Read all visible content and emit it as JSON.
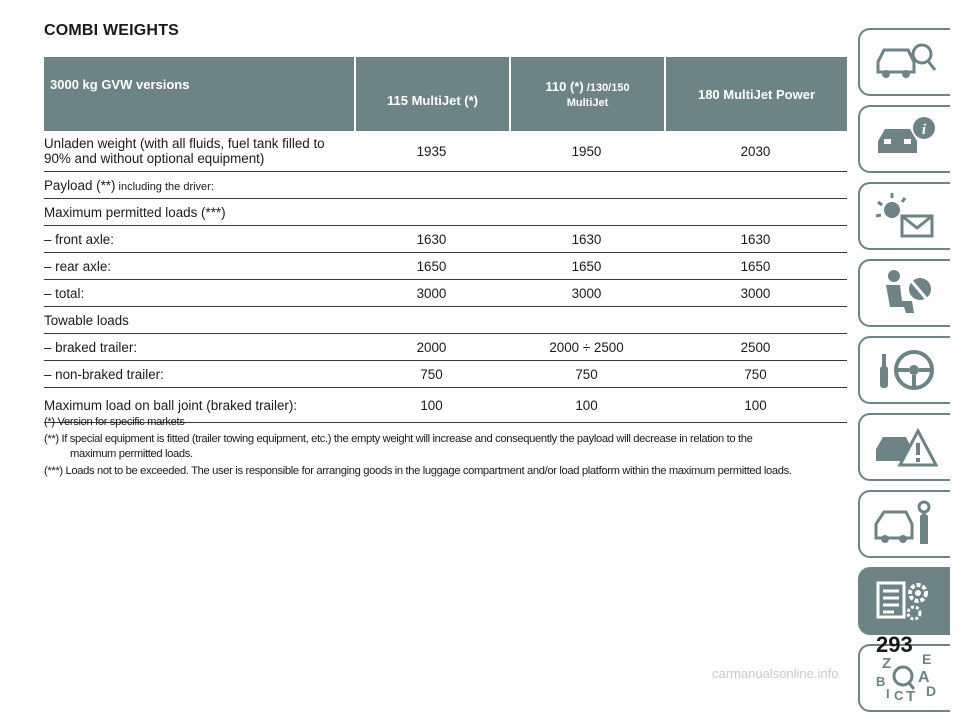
{
  "title": "COMBI WEIGHTS",
  "table": {
    "headers": {
      "c0": "3000 kg GVW versions",
      "c1": "115 MultiJet (*)",
      "c2a": "110 (*)",
      "c2b": " /130/150",
      "c2c": "MultiJet",
      "c3": "180 MultiJet Power"
    },
    "rows": {
      "unladen": {
        "label1": "Unladen weight (with all fluids, fuel tank filled to",
        "label2": "90% and without optional equipment)",
        "v1": "1935",
        "v2": "1950",
        "v3": "2030"
      },
      "payload": {
        "label": "Payload (**)",
        "label_small": " including the driver:"
      },
      "maxloads": {
        "label": "Maximum permitted loads (***)"
      },
      "front": {
        "label": "– front axle:",
        "v1": "1630",
        "v2": "1630",
        "v3": "1630"
      },
      "rear": {
        "label": "– rear axle:",
        "v1": "1650",
        "v2": "1650",
        "v3": "1650"
      },
      "total": {
        "label": "– total:",
        "v1": "3000",
        "v2": "3000",
        "v3": "3000"
      },
      "towable": {
        "label": "Towable loads"
      },
      "braked": {
        "label": "– braked trailer:",
        "v1": "2000",
        "v2": "2000 ÷ 2500",
        "v3": "2500"
      },
      "nonbraked": {
        "label": "– non-braked trailer:",
        "v1": "750",
        "v2": "750",
        "v3": "750"
      },
      "balljoint": {
        "label": "Maximum load on ball joint (braked trailer):",
        "v1": "100",
        "v2": "100",
        "v3": "100"
      }
    }
  },
  "notes": {
    "n1": "(*) Version for specific markets",
    "n2": "(**) If special equipment is fitted (trailer towing equipment, etc.) the empty weight will increase and consequently the payload will decrease in relation to the",
    "n2b": "maximum permitted loads.",
    "n3": "(***) Loads not to be exceeded. The user is responsible for arranging goods in the luggage compartment and/or load platform within the maximum permitted loads."
  },
  "side_tabs": {
    "icons": [
      "car-search-icon",
      "car-info-icon",
      "warning-lights-icon",
      "airbag-seat-icon",
      "steering-wheel-icon",
      "breakdown-icon",
      "car-service-icon",
      "technical-data-icon",
      "alphabetical-index-icon"
    ],
    "active": "technical-data-icon",
    "index_letters": [
      "Z",
      "E",
      "B",
      "A",
      "C",
      "T",
      "D",
      "I"
    ],
    "accent_color": "#6d8386"
  },
  "page_number": "293",
  "watermark": "carmanualsonline.info"
}
